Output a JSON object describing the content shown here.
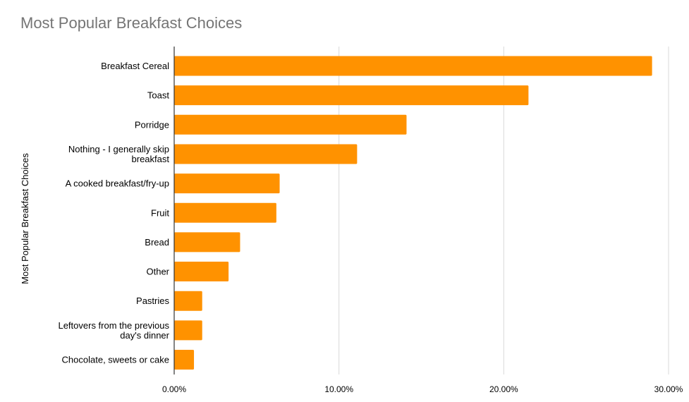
{
  "chart_data": {
    "type": "bar",
    "orientation": "horizontal",
    "title": "Most Popular Breakfast Choices",
    "xlabel": "",
    "ylabel": "Most Popular Breakfast Choices",
    "categories": [
      "Breakfast Cereal",
      "Toast",
      "Porridge",
      "Nothing - I generally skip breakfast",
      "A cooked breakfast/fry-up",
      "Fruit",
      "Bread",
      "Other",
      "Pastries",
      "Leftovers from the previous day's dinner",
      "Chocolate, sweets or cake"
    ],
    "category_label_lines": [
      [
        "Breakfast Cereal"
      ],
      [
        "Toast"
      ],
      [
        "Porridge"
      ],
      [
        "Nothing - I generally skip",
        "breakfast"
      ],
      [
        "A cooked breakfast/fry-up"
      ],
      [
        "Fruit"
      ],
      [
        "Bread"
      ],
      [
        "Other"
      ],
      [
        "Pastries"
      ],
      [
        "Leftovers from the previous",
        "day's dinner"
      ],
      [
        "Chocolate, sweets or cake"
      ]
    ],
    "values": [
      29.0,
      21.5,
      14.1,
      11.1,
      6.4,
      6.2,
      4.0,
      3.3,
      1.7,
      1.7,
      1.2
    ],
    "xlim": [
      0,
      30
    ],
    "xticks": [
      0,
      10,
      20,
      30
    ],
    "xtick_labels": [
      "0.00%",
      "10.00%",
      "20.00%",
      "30.00%"
    ],
    "grid": true,
    "legend": "none",
    "colors": {
      "bar": "#ff9200",
      "grid": "#d9d9d9",
      "axis": "#333333",
      "title": "#757575",
      "text": "#000000"
    }
  }
}
